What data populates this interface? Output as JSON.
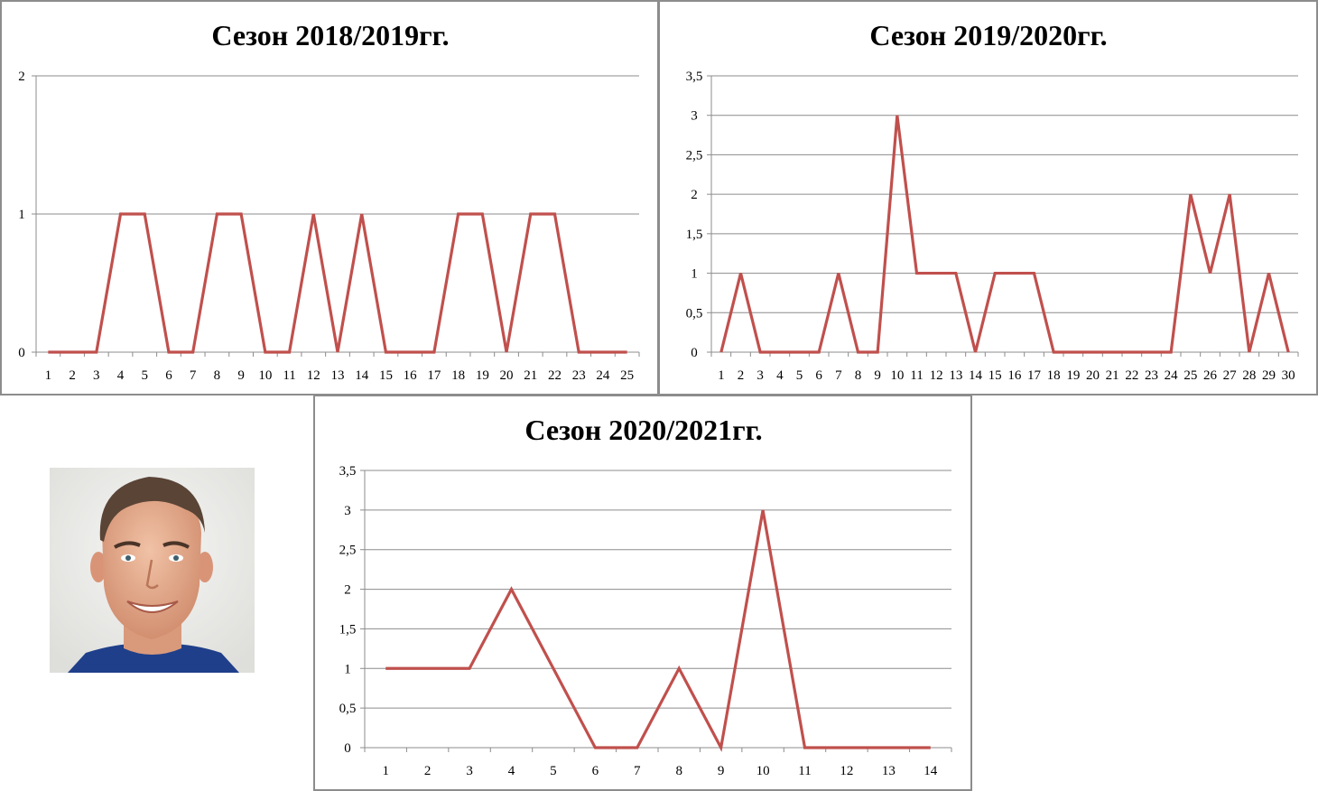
{
  "colors": {
    "series": "#c0504d",
    "grid": "#8c8c8c"
  },
  "chart_data": [
    {
      "type": "line",
      "title": "Сезон 2018/2019гг.",
      "categories": [
        "1",
        "2",
        "3",
        "4",
        "5",
        "6",
        "7",
        "8",
        "9",
        "10",
        "11",
        "12",
        "13",
        "14",
        "15",
        "16",
        "17",
        "18",
        "19",
        "20",
        "21",
        "22",
        "23",
        "24",
        "25"
      ],
      "series": [
        {
          "values": [
            0,
            0,
            0,
            1,
            1,
            0,
            0,
            1,
            1,
            0,
            0,
            1,
            0,
            1,
            0,
            0,
            0,
            1,
            1,
            0,
            1,
            1,
            0,
            0,
            0
          ]
        }
      ],
      "ylim": [
        0,
        2
      ],
      "yticks": [
        0,
        1,
        2
      ],
      "ytick_labels": [
        "0",
        "1",
        "2"
      ],
      "grid": true,
      "legend": "none"
    },
    {
      "type": "line",
      "title": "Сезон 2019/2020гг.",
      "categories": [
        "1",
        "2",
        "3",
        "4",
        "5",
        "6",
        "7",
        "8",
        "9",
        "10",
        "11",
        "12",
        "13",
        "14",
        "15",
        "16",
        "17",
        "18",
        "19",
        "20",
        "21",
        "22",
        "23",
        "24",
        "25",
        "26",
        "27",
        "28",
        "29",
        "30"
      ],
      "series": [
        {
          "values": [
            0,
            1,
            0,
            0,
            0,
            0,
            1,
            0,
            0,
            3,
            1,
            1,
            1,
            0,
            1,
            1,
            1,
            0,
            0,
            0,
            0,
            0,
            0,
            0,
            2,
            1,
            2,
            0,
            1,
            0
          ]
        }
      ],
      "ylim": [
        0,
        3.5
      ],
      "yticks": [
        0,
        0.5,
        1,
        1.5,
        2,
        2.5,
        3,
        3.5
      ],
      "ytick_labels": [
        "0",
        "0,5",
        "1",
        "1,5",
        "2",
        "2,5",
        "3",
        "3,5"
      ],
      "grid": true,
      "legend": "none"
    },
    {
      "type": "line",
      "title": "Сезон 2020/2021гг.",
      "categories": [
        "1",
        "2",
        "3",
        "4",
        "5",
        "6",
        "7",
        "8",
        "9",
        "10",
        "11",
        "12",
        "13",
        "14"
      ],
      "series": [
        {
          "values": [
            1,
            1,
            1,
            2,
            1,
            0,
            0,
            1,
            0,
            3,
            0,
            0,
            0,
            0
          ]
        }
      ],
      "ylim": [
        0,
        3.5
      ],
      "yticks": [
        0,
        0.5,
        1,
        1.5,
        2,
        2.5,
        3,
        3.5
      ],
      "ytick_labels": [
        "0",
        "0,5",
        "1",
        "1,5",
        "2",
        "2,5",
        "3",
        "3,5"
      ],
      "grid": true,
      "legend": "none"
    }
  ]
}
